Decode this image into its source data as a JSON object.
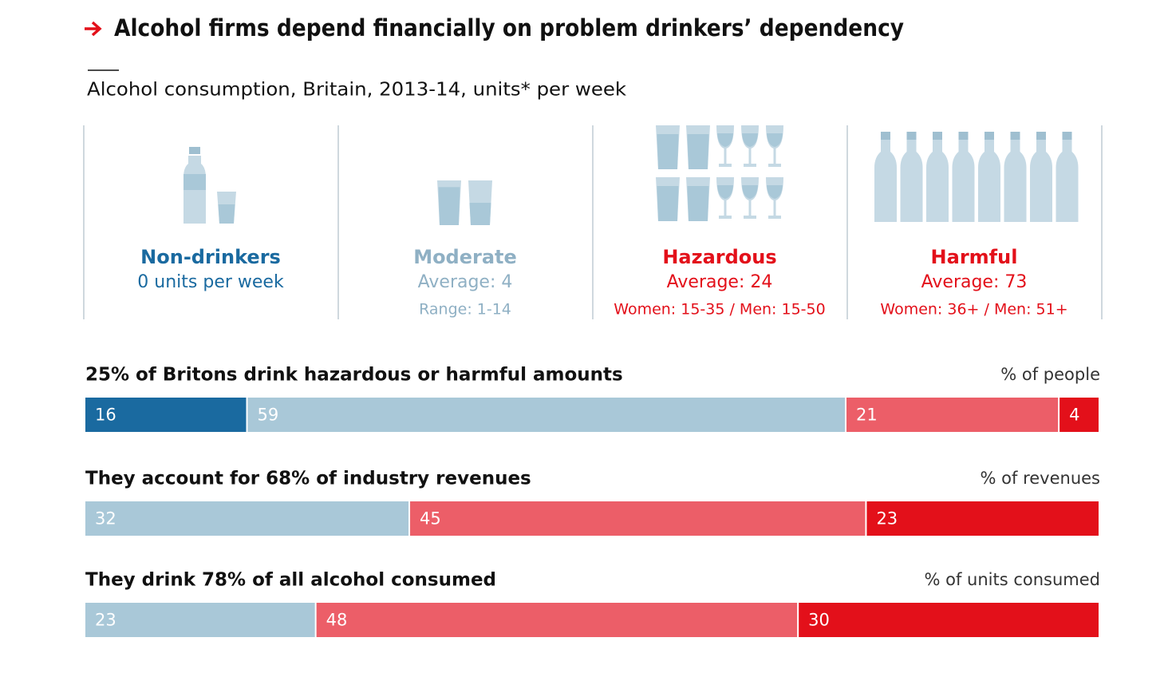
{
  "title": "Alcohol firms depend financially on problem drinkers’ dependency",
  "subtitle": "Alcohol consumption, Britain, 2013-14, units* per week",
  "groups": [
    {
      "name": "Non-drinkers",
      "lines": [
        "0 units per week"
      ],
      "color": "#1a6aa0"
    },
    {
      "name": "Moderate",
      "lines": [
        "Average: 4",
        "Range: 1-14"
      ],
      "color": "#8fb0c4"
    },
    {
      "name": "Hazardous",
      "lines": [
        "Average: 24",
        "Women: 15-35 / Men: 15-50"
      ],
      "color": "#e3101a"
    },
    {
      "name": "Harmful",
      "lines": [
        "Average: 73",
        "Women: 36+ / Men: 51+"
      ],
      "color": "#e3101a"
    }
  ],
  "chart_data": [
    {
      "type": "stacked-bar",
      "title": "25% of Britons drink hazardous or harmful amounts",
      "unit": "% of people",
      "values": [
        16,
        59,
        21,
        4
      ],
      "colors": [
        "#1a6aa0",
        "#a9c8d8",
        "#ec5e68",
        "#e3101a"
      ]
    },
    {
      "type": "stacked-bar",
      "title": "They account for 68% of industry revenues",
      "unit": "% of revenues",
      "values": [
        32,
        45,
        23
      ],
      "colors": [
        "#a9c8d8",
        "#ec5e68",
        "#e3101a"
      ]
    },
    {
      "type": "stacked-bar",
      "title": "They drink 78% of all alcohol consumed",
      "unit": "% of units consumed",
      "values": [
        23,
        48,
        30
      ],
      "colors": [
        "#a9c8d8",
        "#ec5e68",
        "#e3101a"
      ]
    }
  ]
}
